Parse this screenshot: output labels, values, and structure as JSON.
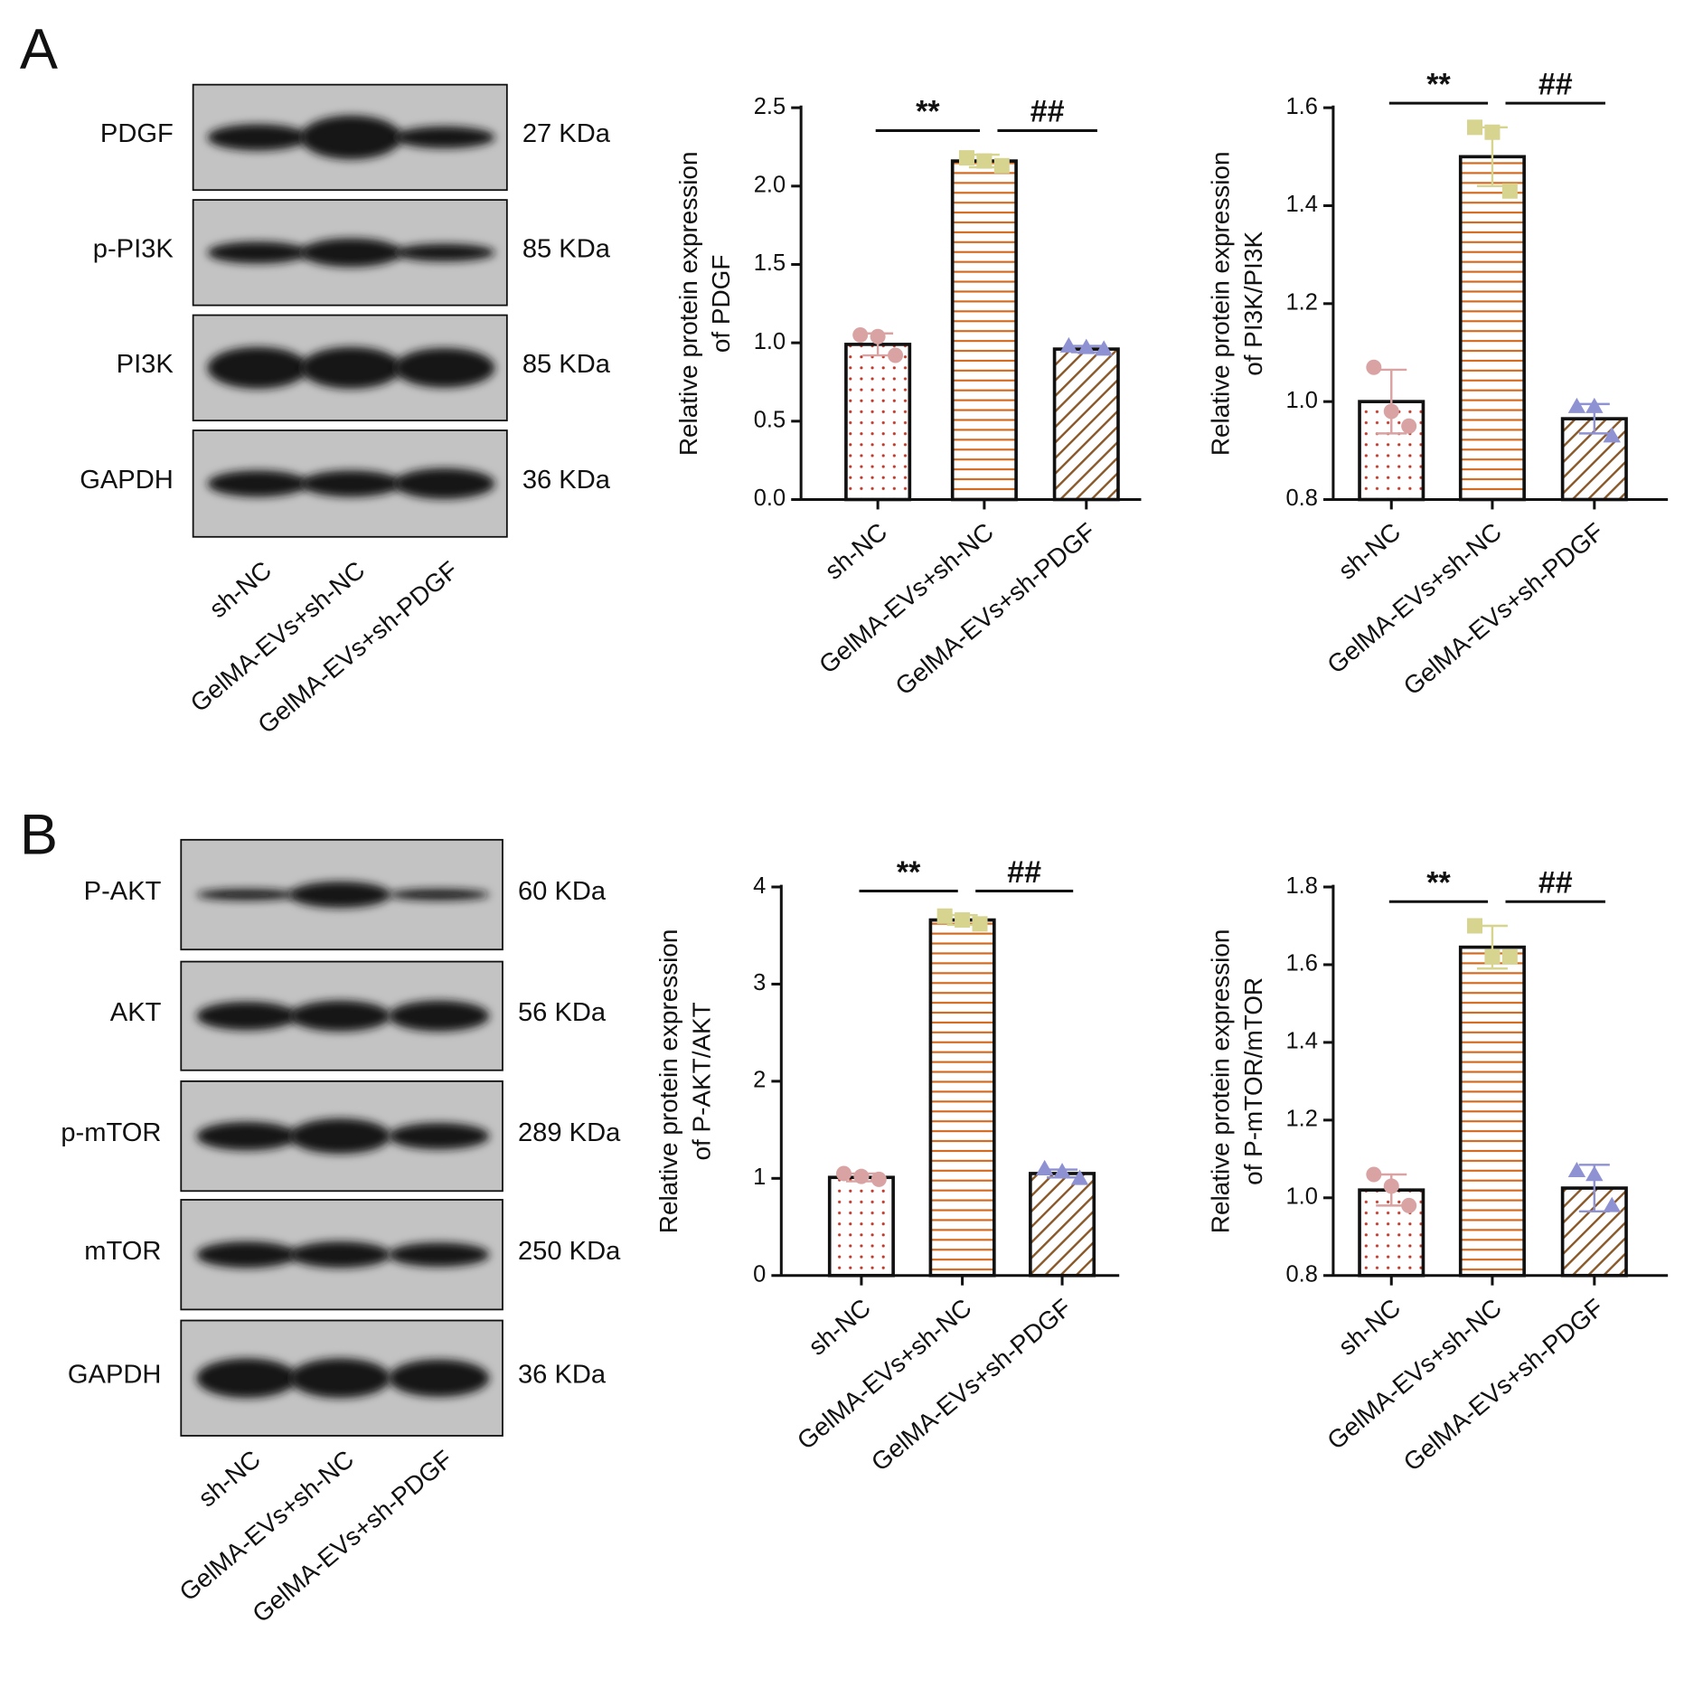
{
  "panels": [
    {
      "label": "A",
      "blot": {
        "rows": [
          {
            "protein": "PDGF",
            "size": "27 KDa"
          },
          {
            "protein": "p-PI3K",
            "size": "85 KDa"
          },
          {
            "protein": "PI3K",
            "size": "85 KDa"
          },
          {
            "protein": "GAPDH",
            "size": "36 KDa"
          }
        ],
        "lanes": [
          "sh-NC",
          "GelMA-EVs+sh-NC",
          "GelMA-EVs+sh-PDGF"
        ]
      }
    },
    {
      "label": "B",
      "blot": {
        "rows": [
          {
            "protein": "P-AKT",
            "size": "60 KDa"
          },
          {
            "protein": "AKT",
            "size": "56 KDa"
          },
          {
            "protein": "p-mTOR",
            "size": "289 KDa"
          },
          {
            "protein": "mTOR",
            "size": "250 KDa"
          },
          {
            "protein": "GAPDH",
            "size": "36 KDa"
          }
        ],
        "lanes": [
          "sh-NC",
          "GelMA-EVs+sh-NC",
          "GelMA-EVs+sh-PDGF"
        ]
      }
    }
  ],
  "chart_data": [
    {
      "type": "bar",
      "ylabel": [
        "Relative protein expression",
        "of PDGF"
      ],
      "categories": [
        "sh-NC",
        "GelMA-EVs+sh-NC",
        "GelMA-EVs+sh-PDGF"
      ],
      "values": [
        0.99,
        2.16,
        0.96
      ],
      "errors": [
        0.07,
        0.04,
        0.02
      ],
      "points": [
        [
          1.05,
          1.04,
          0.92
        ],
        [
          2.18,
          2.16,
          2.13
        ],
        [
          0.98,
          0.97,
          0.96
        ]
      ],
      "colors": [
        "#c0392b",
        "#d2691e",
        "#8b5a2b"
      ],
      "hatches": [
        "dots",
        "hlines",
        "diagonal"
      ],
      "point_colors": [
        "#d9a3a3",
        "#d6d48e",
        "#8e92d3"
      ],
      "markers": [
        "circle",
        "square",
        "triangle"
      ],
      "annotations": [
        "**",
        "##"
      ],
      "ylim": [
        0,
        2.5
      ],
      "yticks": [
        {
          "value": 0,
          "label": "0.0"
        },
        0.5,
        {
          "value": 1,
          "label": "1.0"
        },
        1.5,
        {
          "value": 2,
          "label": "2.0"
        },
        2.5
      ]
    },
    {
      "type": "bar",
      "ylabel": [
        "Relative protein expression",
        "of PI3K/PI3K"
      ],
      "categories": [
        "sh-NC",
        "GelMA-EVs+sh-NC",
        "GelMA-EVs+sh-PDGF"
      ],
      "values": [
        1.0,
        1.5,
        0.965
      ],
      "errors": [
        0.065,
        0.06,
        0.03
      ],
      "points": [
        [
          1.07,
          0.98,
          0.95
        ],
        [
          1.56,
          1.55,
          1.43
        ],
        [
          0.99,
          0.99,
          0.93
        ]
      ],
      "colors": [
        "#c0392b",
        "#d2691e",
        "#8b5a2b"
      ],
      "hatches": [
        "dots",
        "hlines",
        "diagonal"
      ],
      "point_colors": [
        "#d9a3a3",
        "#d6d48e",
        "#8e92d3"
      ],
      "markers": [
        "circle",
        "square",
        "triangle"
      ],
      "annotations": [
        "**",
        "##"
      ],
      "ylim": [
        0.8,
        1.6
      ],
      "yticks": [
        0.8,
        {
          "value": 1,
          "label": "1.0"
        },
        1.2,
        1.4,
        1.6
      ]
    },
    {
      "type": "bar",
      "ylabel": [
        "Relative protein expression",
        "of P-AKT/AKT"
      ],
      "categories": [
        "sh-NC",
        "GelMA-EVs+sh-NC",
        "GelMA-EVs+sh-PDGF"
      ],
      "values": [
        1.01,
        3.66,
        1.05
      ],
      "errors": [
        0.04,
        0.05,
        0.04
      ],
      "points": [
        [
          1.05,
          1.02,
          0.99
        ],
        [
          3.7,
          3.66,
          3.62
        ],
        [
          1.1,
          1.07,
          1.0
        ]
      ],
      "colors": [
        "#c0392b",
        "#d2691e",
        "#8b5a2b"
      ],
      "hatches": [
        "dots",
        "hlines",
        "diagonal"
      ],
      "point_colors": [
        "#d9a3a3",
        "#d6d48e",
        "#8e92d3"
      ],
      "markers": [
        "circle",
        "square",
        "triangle"
      ],
      "annotations": [
        "**",
        "##"
      ],
      "ylim": [
        0,
        4
      ],
      "yticks": [
        0,
        1,
        2,
        3,
        4
      ]
    },
    {
      "type": "bar",
      "ylabel": [
        "Relative protein expression",
        "of P-mTOR/mTOR"
      ],
      "categories": [
        "sh-NC",
        "GelMA-EVs+sh-NC",
        "GelMA-EVs+sh-PDGF"
      ],
      "values": [
        1.02,
        1.645,
        1.025
      ],
      "errors": [
        0.04,
        0.055,
        0.06
      ],
      "points": [
        [
          1.06,
          1.03,
          0.98
        ],
        [
          1.7,
          1.62,
          1.62
        ],
        [
          1.07,
          1.06,
          0.98
        ]
      ],
      "colors": [
        "#c0392b",
        "#d2691e",
        "#8b5a2b"
      ],
      "hatches": [
        "dots",
        "hlines",
        "diagonal"
      ],
      "point_colors": [
        "#d9a3a3",
        "#d6d48e",
        "#8e92d3"
      ],
      "markers": [
        "circle",
        "square",
        "triangle"
      ],
      "annotations": [
        "**",
        "##"
      ],
      "ylim": [
        0.8,
        1.8
      ],
      "yticks": [
        0.8,
        {
          "value": 1,
          "label": "1.0"
        },
        1.2,
        1.4,
        1.6,
        1.8
      ]
    }
  ]
}
